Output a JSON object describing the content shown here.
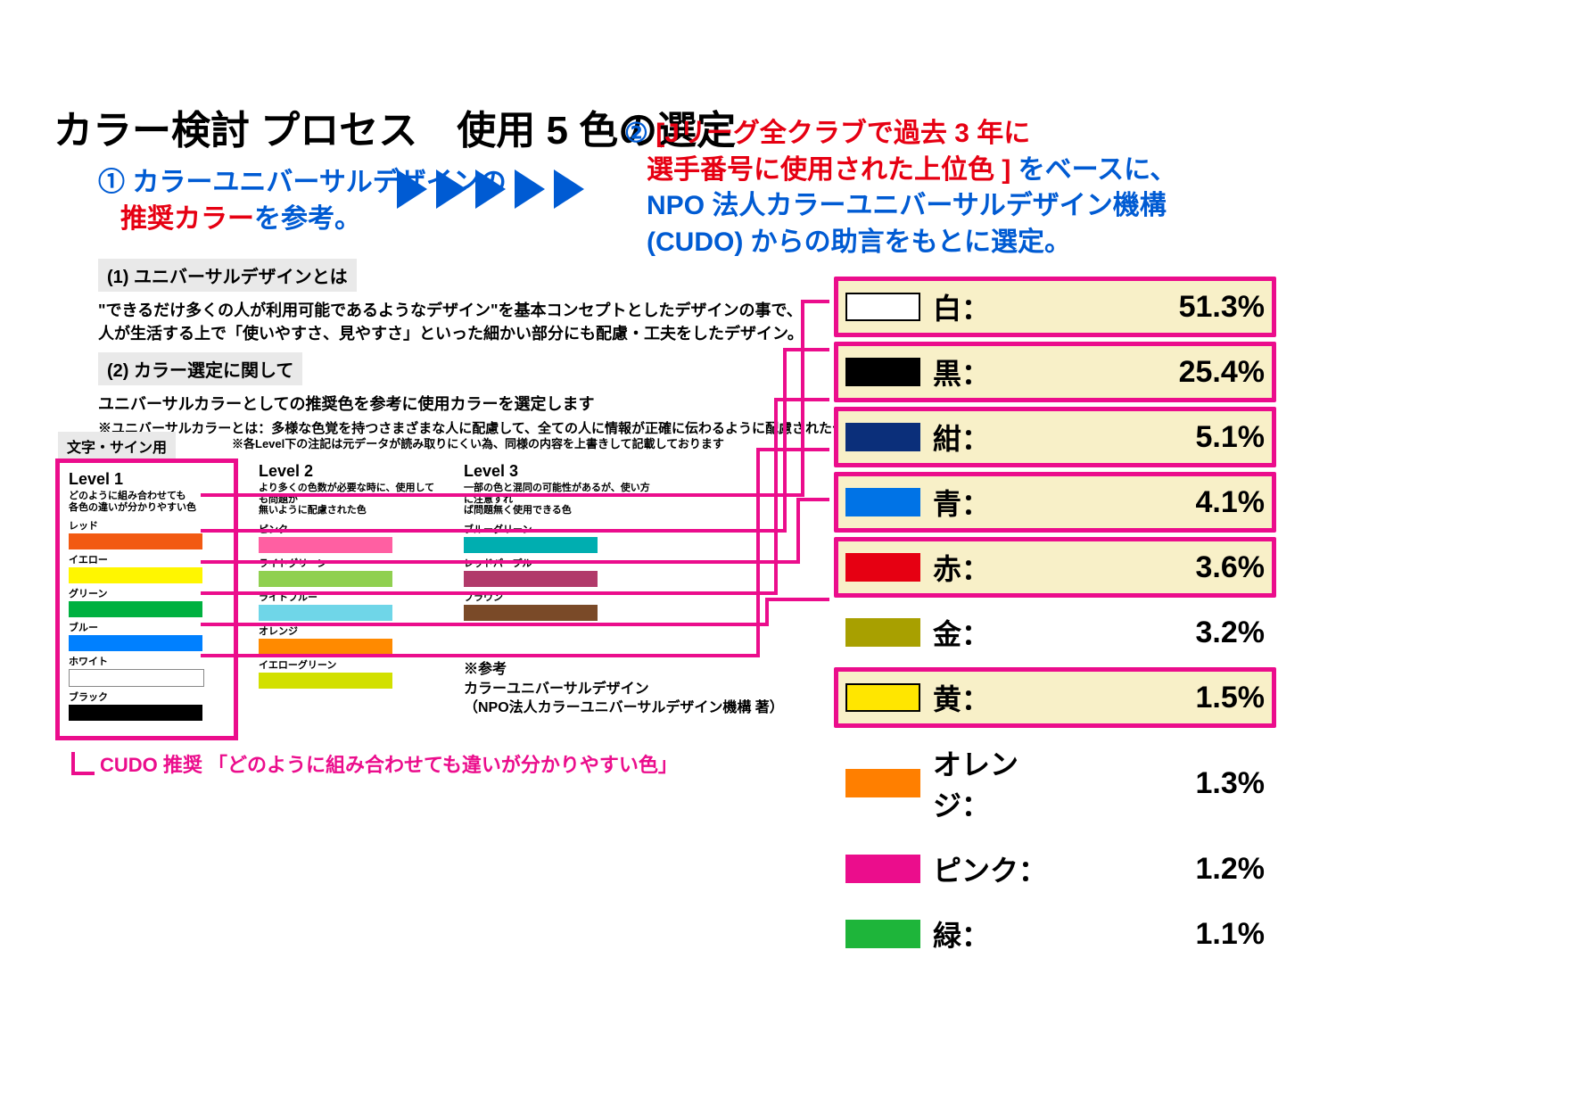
{
  "title": "カラー検討 プロセス　使用 5 色の選定",
  "step1": {
    "num": "①",
    "line1_blue": " カラーユニバーサルデザインの",
    "line2_red": "推奨カラー",
    "line2_blue_tail": "を参考。"
  },
  "step2": {
    "num": "②",
    "l1_red": " [Jリーグ全クラブで過去 3 年に",
    "l2_red": "選手番号に使用された上位色 ]",
    "l2_blue_tail": " をベースに、",
    "l3_blue": "NPO 法人カラーユニバーサルデザイン機構",
    "l4_blue": "(CUDO) からの助言をもとに選定。"
  },
  "arrow_count": 5,
  "sec1_h": "(1) ユニバーサルデザインとは",
  "sec1_body": "\"できるだけ多くの人が利用可能であるようなデザイン\"を基本コンセプトとしたデザインの事で、\n人が生活する上で「使いやすさ、見やすさ」といった細かい部分にも配慮・工夫をしたデザイン。",
  "sec2_h": "(2) カラー選定に関して",
  "sec2_body": "ユニバーサルカラーとしての推奨色を参考に使用カラーを選定します",
  "sec2_note": "※ユニバーサルカラーとは：多様な色覚を持つさまざまな人に配慮して、全ての人に情報が正確に伝わるように配慮されたデザイン。",
  "table_caption": "文字・サイン用",
  "table_note": "※各Level下の注記は元データが読み取りにくい為、同様の内容を上書きして記載しております",
  "levels": {
    "l1": {
      "title": "Level 1",
      "sub": "どのように組み合わせても\n各色の違いが分かりやすい色",
      "rows": [
        {
          "label": "レッド",
          "color": "#f25a12"
        },
        {
          "label": "イエロー",
          "color": "#fff600"
        },
        {
          "label": "グリーン",
          "color": "#00b140"
        },
        {
          "label": "ブルー",
          "color": "#0080ff"
        },
        {
          "label": "ホワイト",
          "color": "#ffffff",
          "border": true
        },
        {
          "label": "ブラック",
          "color": "#000000"
        }
      ]
    },
    "l2": {
      "title": "Level 2",
      "sub": "より多くの色数が必要な時に、使用しても問題が\n無いように配慮された色",
      "rows": [
        {
          "label": "ピンク",
          "color": "#ff5fa2"
        },
        {
          "label": "ライトグリーン",
          "color": "#90d050"
        },
        {
          "label": "ライトブルー",
          "color": "#6fd6e8"
        },
        {
          "label": "オレンジ",
          "color": "#ff8a00"
        },
        {
          "label": "イエローグリーン",
          "color": "#d2e000"
        }
      ]
    },
    "l3": {
      "title": "Level 3",
      "sub": "一部の色と混同の可能性があるが、使い方に注意すれ\nば問題無く使用できる色",
      "rows": [
        {
          "label": "ブルーグリーン",
          "color": "#00aeb0"
        },
        {
          "label": "レッドパープル",
          "color": "#b13a6a"
        },
        {
          "label": "ブラウン",
          "color": "#7a4a28"
        }
      ]
    }
  },
  "reference": {
    "head": "※参考",
    "l1": "カラーユニバーサルデザイン",
    "l2": "（NPO法人カラーユニバーサルデザイン機構 著）"
  },
  "cudo_caption": "CUDO 推奨 「どのように組み合わせても違いが分かりやすい色」",
  "ranking": [
    {
      "name": "白：",
      "pct": "51.3%",
      "chip": "#ffffff",
      "chip_border": true,
      "highlight": true
    },
    {
      "name": "黒：",
      "pct": "25.4%",
      "chip": "#000000",
      "highlight": true
    },
    {
      "name": "紺：",
      "pct": "5.1%",
      "chip": "#0b2f7a",
      "highlight": true
    },
    {
      "name": "青：",
      "pct": "4.1%",
      "chip": "#0073e6",
      "highlight": true
    },
    {
      "name": "赤：",
      "pct": "3.6%",
      "chip": "#e60012",
      "highlight": true
    },
    {
      "name": "金：",
      "pct": "3.2%",
      "chip": "#a8a000",
      "highlight": false
    },
    {
      "name": "黄：",
      "pct": "1.5%",
      "chip": "#ffe600",
      "chip_border": true,
      "highlight": true
    },
    {
      "name": "オレンジ：",
      "pct": "1.3%",
      "chip": "#ff7f00",
      "highlight": false,
      "noborder_chip": true
    },
    {
      "name": "ピンク：",
      "pct": "1.2%",
      "chip": "#eb0d8c",
      "highlight": false,
      "noborder_chip": true
    },
    {
      "name": "緑：",
      "pct": "1.1%",
      "chip": "#1eb53a",
      "highlight": false,
      "noborder_chip": true
    }
  ],
  "connectors": {
    "stroke": "#eb0d8c",
    "width": 4,
    "lines": [
      [
        225,
        555,
        900,
        555,
        900,
        338,
        930,
        338
      ],
      [
        225,
        595,
        880,
        595,
        880,
        392,
        930,
        392
      ],
      [
        225,
        630,
        895,
        630,
        895,
        560,
        930,
        560
      ],
      [
        225,
        665,
        870,
        665,
        870,
        448,
        930,
        448
      ],
      [
        225,
        700,
        860,
        700,
        860,
        672,
        930,
        672
      ],
      [
        225,
        735,
        850,
        735,
        850,
        504,
        930,
        504
      ]
    ]
  },
  "colors": {
    "pink": "#eb0d8c",
    "blue": "#005bd3",
    "red": "#e60012"
  }
}
